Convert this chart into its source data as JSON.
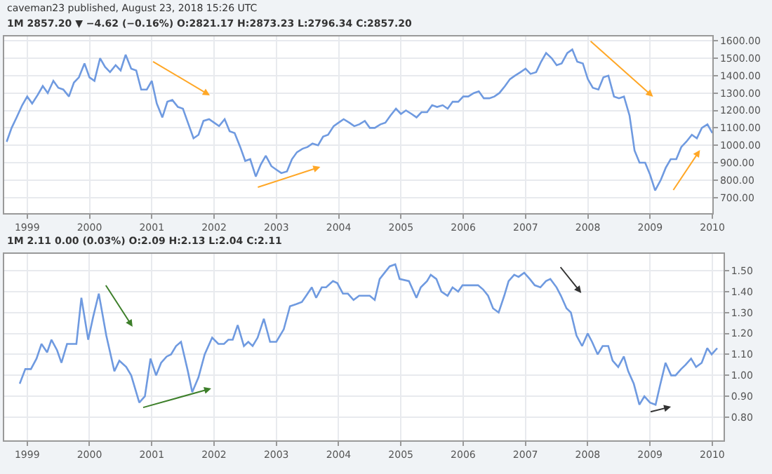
{
  "chart_data": [
    {
      "type": "line",
      "title": "1M 2857.20 ▼ −4.62 (−0.16%) O:2821.17 H:2873.23 L:2796.34 C:2857.20",
      "annotations": [
        "caveman23 published, August 23, 2018 15:26 UTC"
      ],
      "x": [
        1998.67,
        1998.75,
        1998.83,
        1998.92,
        1999.0,
        1999.08,
        1999.17,
        1999.25,
        1999.33,
        1999.42,
        1999.5,
        1999.58,
        1999.67,
        1999.75,
        1999.83,
        1999.92,
        2000.0,
        2000.08,
        2000.17,
        2000.25,
        2000.33,
        2000.42,
        2000.5,
        2000.58,
        2000.67,
        2000.75,
        2000.83,
        2000.92,
        2001.0,
        2001.08,
        2001.17,
        2001.25,
        2001.33,
        2001.42,
        2001.5,
        2001.58,
        2001.67,
        2001.75,
        2001.83,
        2001.92,
        2002.0,
        2002.08,
        2002.17,
        2002.25,
        2002.33,
        2002.42,
        2002.5,
        2002.58,
        2002.67,
        2002.75,
        2002.83,
        2002.92,
        2003.0,
        2003.08,
        2003.17,
        2003.25,
        2003.33,
        2003.42,
        2003.5,
        2003.58,
        2003.67,
        2003.75,
        2003.83,
        2003.92,
        2004.0,
        2004.08,
        2004.17,
        2004.25,
        2004.33,
        2004.42,
        2004.5,
        2004.58,
        2004.67,
        2004.75,
        2004.83,
        2004.92,
        2005.0,
        2005.08,
        2005.17,
        2005.25,
        2005.33,
        2005.42,
        2005.5,
        2005.58,
        2005.67,
        2005.75,
        2005.83,
        2005.92,
        2006.0,
        2006.08,
        2006.17,
        2006.25,
        2006.33,
        2006.42,
        2006.5,
        2006.58,
        2006.67,
        2006.75,
        2006.83,
        2006.92,
        2007.0,
        2007.08,
        2007.17,
        2007.25,
        2007.33,
        2007.42,
        2007.5,
        2007.58,
        2007.67,
        2007.75,
        2007.83,
        2007.92,
        2008.0,
        2008.08,
        2008.17,
        2008.25,
        2008.33,
        2008.42,
        2008.5,
        2008.58,
        2008.67,
        2008.75,
        2008.83,
        2008.92,
        2009.0,
        2009.08,
        2009.17,
        2009.25,
        2009.33,
        2009.42,
        2009.5,
        2009.58,
        2009.67,
        2009.75,
        2009.83,
        2009.92,
        2010.0
      ],
      "series": [
        {
          "color": "#6f9ae0",
          "values": [
            1020,
            1100,
            1160,
            1230,
            1280,
            1240,
            1290,
            1340,
            1300,
            1370,
            1330,
            1320,
            1280,
            1360,
            1390,
            1470,
            1390,
            1370,
            1500,
            1450,
            1420,
            1460,
            1430,
            1520,
            1440,
            1430,
            1320,
            1320,
            1370,
            1240,
            1160,
            1250,
            1260,
            1220,
            1210,
            1130,
            1040,
            1060,
            1140,
            1150,
            1130,
            1110,
            1150,
            1080,
            1070,
            990,
            910,
            920,
            820,
            890,
            940,
            880,
            860,
            840,
            850,
            920,
            960,
            980,
            990,
            1010,
            1000,
            1050,
            1060,
            1110,
            1130,
            1150,
            1130,
            1110,
            1120,
            1140,
            1100,
            1100,
            1120,
            1130,
            1170,
            1210,
            1180,
            1200,
            1180,
            1160,
            1190,
            1190,
            1230,
            1220,
            1230,
            1210,
            1250,
            1250,
            1280,
            1280,
            1300,
            1310,
            1270,
            1270,
            1280,
            1300,
            1340,
            1380,
            1400,
            1420,
            1440,
            1410,
            1420,
            1480,
            1530,
            1500,
            1460,
            1470,
            1530,
            1550,
            1480,
            1470,
            1380,
            1330,
            1320,
            1390,
            1400,
            1280,
            1270,
            1280,
            1170,
            970,
            900,
            900,
            830,
            740,
            800,
            870,
            920,
            920,
            990,
            1020,
            1060,
            1040,
            1100,
            1120,
            1070
          ]
        }
      ],
      "xlim": [
        1998.63,
        2010.0
      ],
      "xticks": [
        1999,
        2000,
        2001,
        2002,
        2003,
        2004,
        2005,
        2006,
        2007,
        2008,
        2009,
        2010
      ],
      "ylim": [
        610,
        1625
      ],
      "yticks": [
        {
          "value": 700,
          "label": "700.00"
        },
        {
          "value": 800,
          "label": "800.00"
        },
        {
          "value": 900,
          "label": "900.00"
        },
        {
          "value": 1000,
          "label": "1000.00"
        },
        {
          "value": 1100,
          "label": "1100.00"
        },
        {
          "value": 1200,
          "label": "1200.00"
        },
        {
          "value": 1300,
          "label": "1300.00"
        },
        {
          "value": 1400,
          "label": "1400.00"
        },
        {
          "value": 1500,
          "label": "1500.00"
        },
        {
          "value": 1600,
          "label": "1600.00"
        }
      ],
      "grid": true
    },
    {
      "type": "line",
      "title": "1M 2.11 0.00 (0.03%) O:2.09 H:2.13 L:2.04 C:2.11",
      "x": [
        1998.88,
        1998.97,
        1999.06,
        1999.15,
        1999.23,
        1999.32,
        1999.39,
        1999.48,
        1999.55,
        1999.64,
        1999.79,
        1999.87,
        1999.98,
        2000.06,
        2000.15,
        2000.27,
        2000.4,
        2000.48,
        2000.59,
        2000.67,
        2000.8,
        2000.89,
        2000.98,
        2001.07,
        2001.15,
        2001.24,
        2001.31,
        2001.39,
        2001.47,
        2001.58,
        2001.65,
        2001.75,
        2001.85,
        2001.97,
        2002.07,
        2002.16,
        2002.23,
        2002.3,
        2002.38,
        2002.48,
        2002.55,
        2002.62,
        2002.7,
        2002.8,
        2002.9,
        2003.0,
        2003.12,
        2003.22,
        2003.32,
        2003.41,
        2003.48,
        2003.57,
        2003.64,
        2003.73,
        2003.8,
        2003.91,
        2003.98,
        2004.07,
        2004.15,
        2004.24,
        2004.33,
        2004.43,
        2004.5,
        2004.58,
        2004.66,
        2004.74,
        2004.82,
        2004.91,
        2004.98,
        2005.13,
        2005.25,
        2005.32,
        2005.42,
        2005.48,
        2005.57,
        2005.65,
        2005.75,
        2005.83,
        2005.92,
        2005.99,
        2006.09,
        2006.24,
        2006.32,
        2006.4,
        2006.48,
        2006.57,
        2006.66,
        2006.73,
        2006.82,
        2006.89,
        2006.98,
        2007.07,
        2007.15,
        2007.24,
        2007.33,
        2007.4,
        2007.5,
        2007.57,
        2007.66,
        2007.73,
        2007.82,
        2007.91,
        2008.0,
        2008.07,
        2008.16,
        2008.24,
        2008.33,
        2008.4,
        2008.49,
        2008.58,
        2008.65,
        2008.74,
        2008.83,
        2008.91,
        2009.0,
        2009.09,
        2009.16,
        2009.25,
        2009.34,
        2009.41,
        2009.5,
        2009.57,
        2009.66,
        2009.74,
        2009.83,
        2009.92,
        2009.99,
        2010.08
      ],
      "series": [
        {
          "color": "#6f9ae0",
          "values": [
            0.96,
            1.03,
            1.03,
            1.08,
            1.15,
            1.11,
            1.17,
            1.12,
            1.06,
            1.15,
            1.15,
            1.37,
            1.17,
            1.28,
            1.39,
            1.19,
            1.02,
            1.07,
            1.04,
            1.0,
            0.87,
            0.9,
            1.08,
            1.0,
            1.06,
            1.09,
            1.1,
            1.14,
            1.16,
            1.02,
            0.92,
            0.99,
            1.1,
            1.18,
            1.15,
            1.15,
            1.17,
            1.17,
            1.24,
            1.14,
            1.16,
            1.14,
            1.18,
            1.27,
            1.16,
            1.16,
            1.22,
            1.33,
            1.34,
            1.35,
            1.38,
            1.42,
            1.37,
            1.42,
            1.42,
            1.45,
            1.44,
            1.39,
            1.39,
            1.36,
            1.38,
            1.38,
            1.38,
            1.36,
            1.46,
            1.49,
            1.52,
            1.53,
            1.46,
            1.45,
            1.37,
            1.42,
            1.45,
            1.48,
            1.46,
            1.4,
            1.38,
            1.42,
            1.4,
            1.43,
            1.43,
            1.43,
            1.41,
            1.38,
            1.32,
            1.3,
            1.38,
            1.45,
            1.48,
            1.47,
            1.49,
            1.46,
            1.43,
            1.42,
            1.45,
            1.46,
            1.42,
            1.38,
            1.32,
            1.3,
            1.19,
            1.14,
            1.2,
            1.16,
            1.1,
            1.14,
            1.14,
            1.07,
            1.04,
            1.09,
            1.02,
            0.96,
            0.86,
            0.9,
            0.87,
            0.86,
            0.95,
            1.06,
            1.0,
            1.0,
            1.03,
            1.05,
            1.08,
            1.04,
            1.06,
            1.13,
            1.1,
            1.13
          ]
        }
      ],
      "xlim": [
        1998.63,
        2010.18
      ],
      "xticks": [
        1999,
        2000,
        2001,
        2002,
        2003,
        2004,
        2005,
        2006,
        2007,
        2008,
        2009,
        2010
      ],
      "ylim": [
        0.69,
        1.58
      ],
      "yticks": [
        {
          "value": 0.8,
          "label": "0.80"
        },
        {
          "value": 0.9,
          "label": "0.90"
        },
        {
          "value": 1.0,
          "label": "1.00"
        },
        {
          "value": 1.1,
          "label": "1.10"
        },
        {
          "value": 1.2,
          "label": "1.20"
        },
        {
          "value": 1.3,
          "label": "1.30"
        },
        {
          "value": 1.4,
          "label": "1.40"
        },
        {
          "value": 1.5,
          "label": "1.50"
        }
      ],
      "grid": true
    }
  ]
}
